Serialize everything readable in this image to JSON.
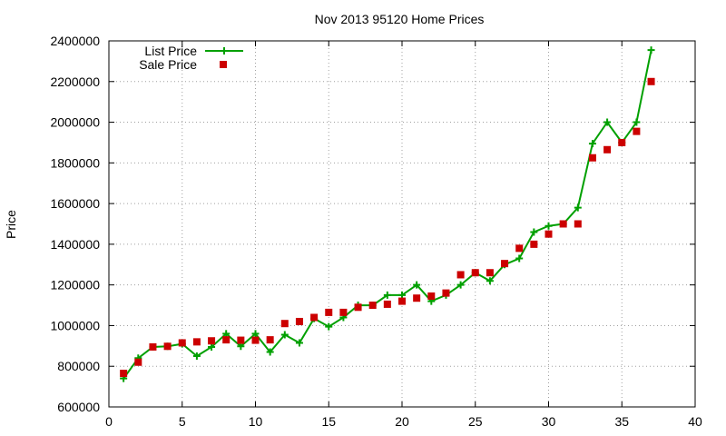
{
  "chart_data": {
    "type": "line",
    "title": "Nov 2013 95120 Home Prices",
    "xlabel": "",
    "ylabel": "Price",
    "xlim": [
      0,
      40
    ],
    "ylim": [
      600000,
      2400000
    ],
    "xticks": [
      0,
      5,
      10,
      15,
      20,
      25,
      30,
      35,
      40
    ],
    "yticks": [
      600000,
      800000,
      1000000,
      1200000,
      1400000,
      1600000,
      1800000,
      2000000,
      2200000,
      2400000
    ],
    "grid": true,
    "legend_position": "top-left",
    "colors": {
      "list": "#00a000",
      "sale": "#cc0000"
    },
    "series": [
      {
        "name": "List Price",
        "style": "line-plus",
        "x": [
          1,
          2,
          3,
          4,
          5,
          6,
          7,
          8,
          9,
          10,
          11,
          12,
          13,
          14,
          15,
          16,
          17,
          18,
          19,
          20,
          21,
          22,
          23,
          24,
          25,
          26,
          27,
          28,
          29,
          30,
          31,
          32,
          33,
          34,
          35,
          36,
          37
        ],
        "y": [
          740000,
          840000,
          895000,
          898000,
          910000,
          850000,
          895000,
          960000,
          898000,
          960000,
          870000,
          955000,
          915000,
          1035000,
          995000,
          1040000,
          1100000,
          1100000,
          1150000,
          1150000,
          1200000,
          1120000,
          1150000,
          1200000,
          1260000,
          1220000,
          1300000,
          1330000,
          1460000,
          1490000,
          1500000,
          1580000,
          1895000,
          2000000,
          1900000,
          2000000,
          2355000
        ]
      },
      {
        "name": "Sale Price",
        "style": "square",
        "x": [
          1,
          2,
          3,
          4,
          5,
          6,
          7,
          8,
          9,
          10,
          11,
          12,
          13,
          14,
          15,
          16,
          17,
          18,
          19,
          20,
          21,
          22,
          23,
          24,
          25,
          26,
          27,
          28,
          29,
          30,
          31,
          32,
          33,
          34,
          35,
          36,
          37
        ],
        "y": [
          765000,
          820000,
          895000,
          898000,
          915000,
          920000,
          925000,
          930000,
          928000,
          928000,
          930000,
          1010000,
          1020000,
          1040000,
          1065000,
          1065000,
          1090000,
          1100000,
          1105000,
          1120000,
          1135000,
          1145000,
          1160000,
          1250000,
          1260000,
          1260000,
          1305000,
          1380000,
          1400000,
          1450000,
          1500000,
          1500000,
          1825000,
          1865000,
          1900000,
          1955000,
          2200000
        ]
      }
    ]
  }
}
